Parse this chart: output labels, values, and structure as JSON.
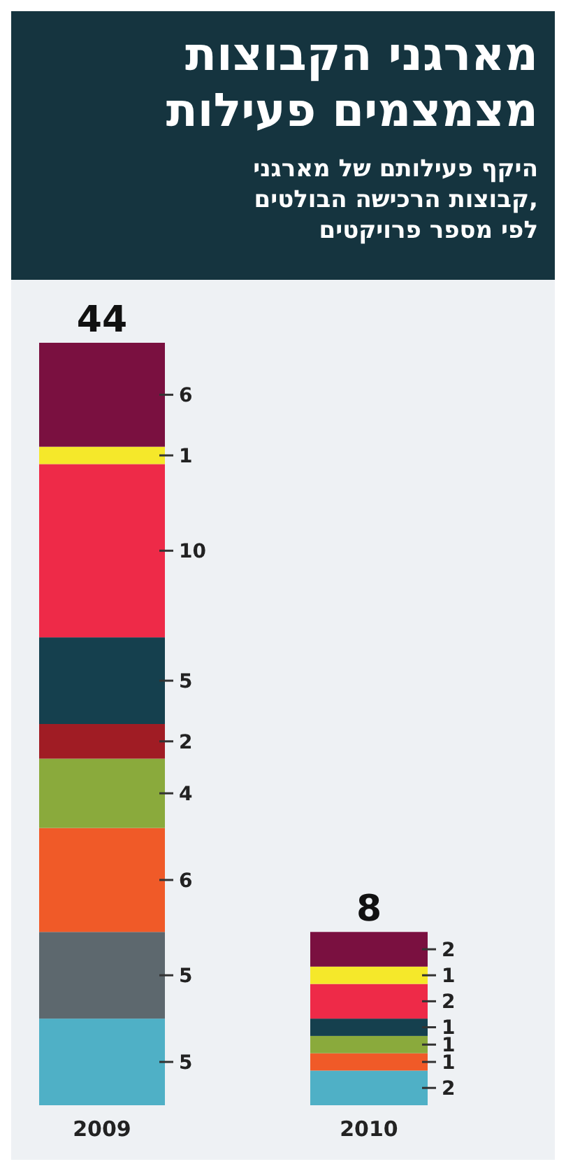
{
  "chart_data": {
    "type": "bar",
    "title": "מארגני הקבוצות\nמצמצמים פעילות",
    "subtitle": "היקף פעילותם של מארגני\nקבוצות הרכישה הבולטים,\nלפי מספר פרויקטים",
    "categories": [
      "2009",
      "2010"
    ],
    "stacked": true,
    "data_labels": true,
    "totals": [
      "44",
      "8"
    ],
    "series": [
      {
        "color": "#4fb0c6",
        "values": [
          5,
          2
        ]
      },
      {
        "color": "#5d686e",
        "values": [
          5,
          null
        ]
      },
      {
        "color": "#f05a28",
        "values": [
          6,
          1
        ]
      },
      {
        "color": "#8aaa3c",
        "values": [
          4,
          1
        ]
      },
      {
        "color": "#a01c24",
        "values": [
          2,
          null
        ]
      },
      {
        "color": "#15404e",
        "values": [
          5,
          1
        ]
      },
      {
        "color": "#ee2a48",
        "values": [
          10,
          2
        ]
      },
      {
        "color": "#f5e82a",
        "values": [
          1,
          1
        ]
      },
      {
        "color": "#7a1040",
        "values": [
          6,
          2
        ]
      }
    ]
  }
}
